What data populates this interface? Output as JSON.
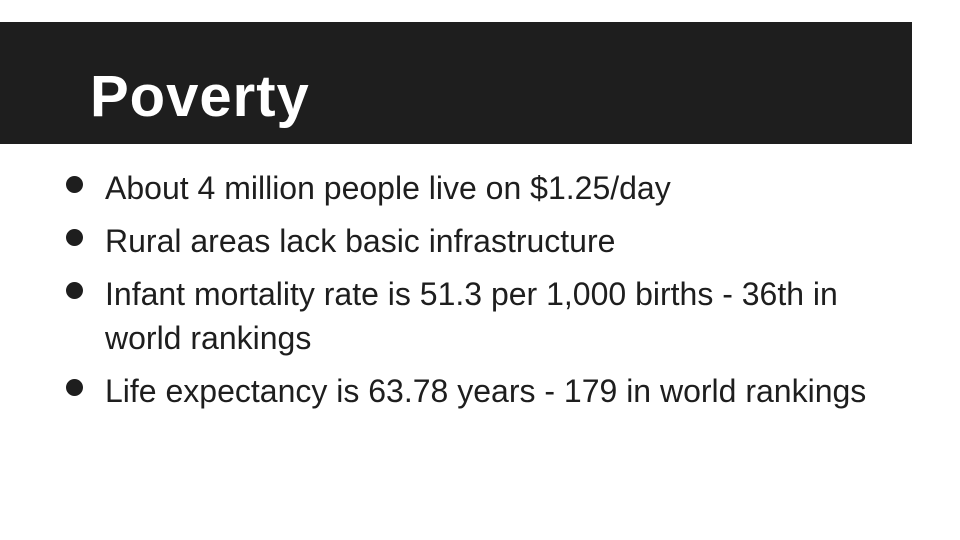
{
  "slide": {
    "title": "Poverty",
    "bullets": [
      "About 4 million people live on $1.25/day",
      "Rural areas lack basic infrastructure",
      "Infant mortality rate is 51.3 per 1,000 births - 36th in world rankings",
      "Life expectancy is 63.78 years - 179 in world rankings"
    ]
  },
  "colors": {
    "title_bar": "#1e1e1e",
    "title_text": "#ffffff",
    "body_text": "#1e1e1e",
    "background": "#ffffff"
  }
}
